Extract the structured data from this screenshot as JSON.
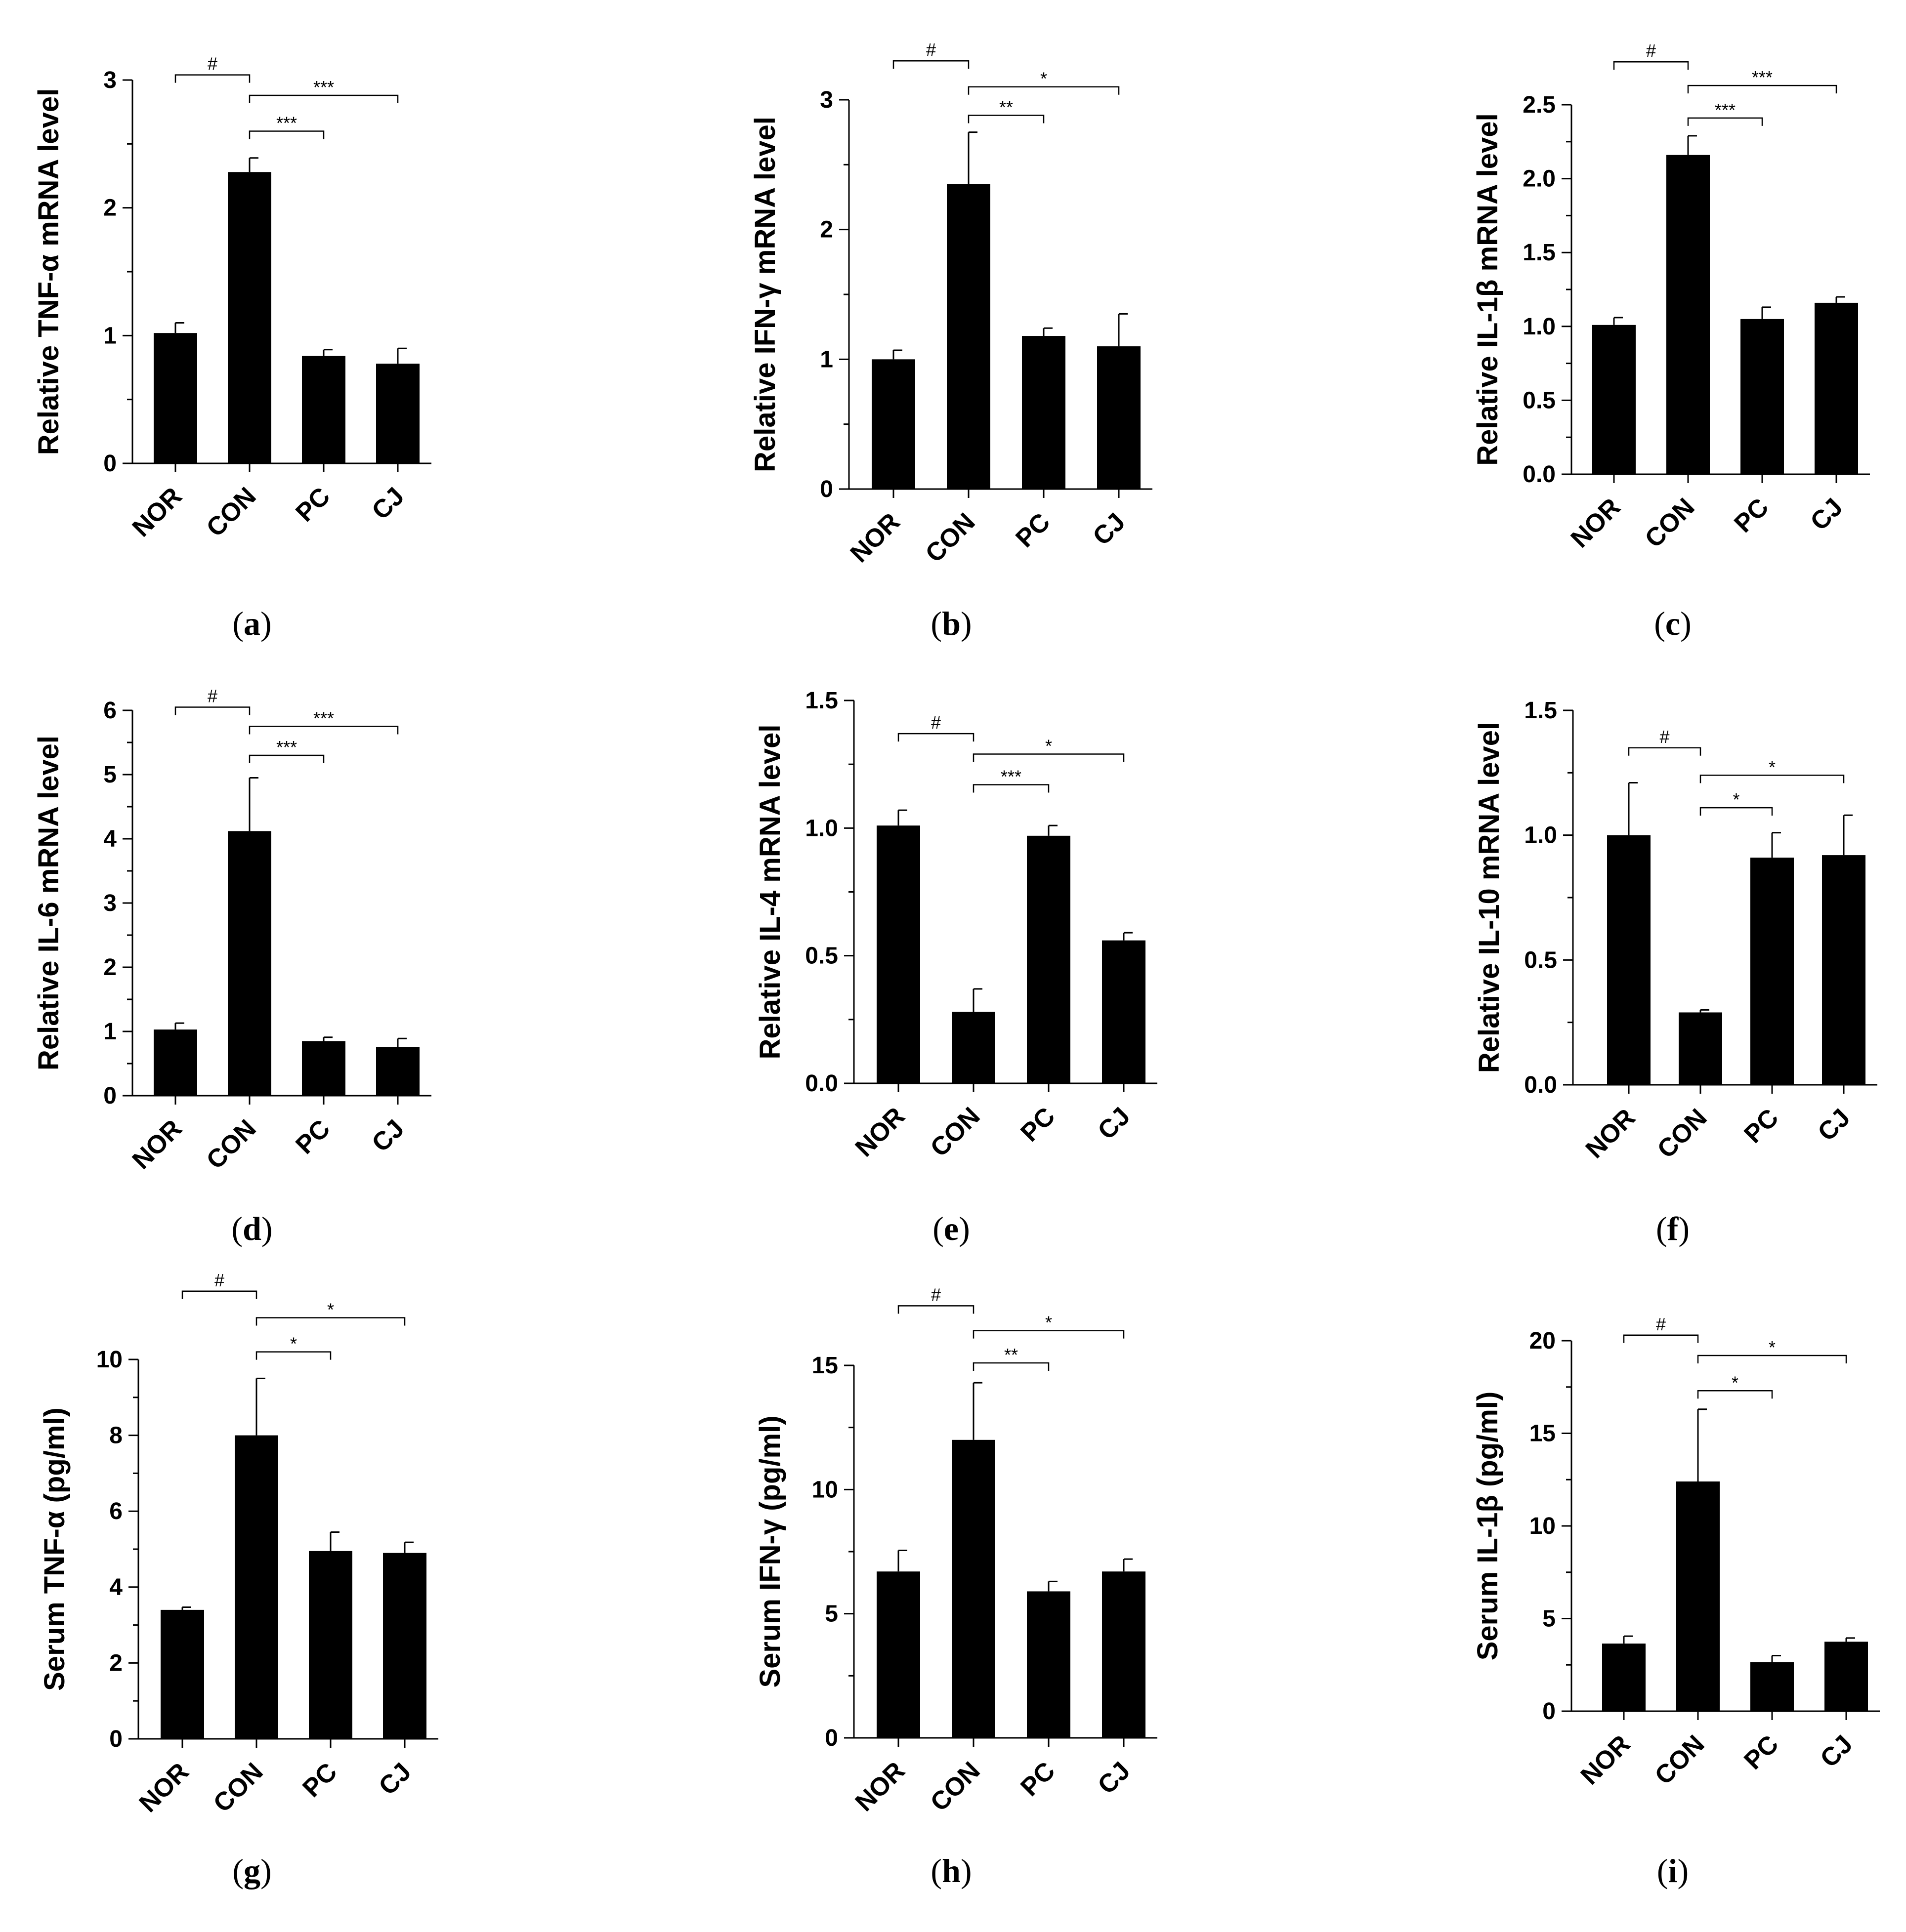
{
  "chart_data": [
    {
      "type": "bar",
      "panel": "a",
      "ylabel": "Relative TNF-α mRNA level",
      "categories": [
        "NOR",
        "CON",
        "PC",
        "CJ"
      ],
      "values": [
        1.02,
        2.28,
        0.84,
        0.78
      ],
      "errors": [
        0.08,
        0.11,
        0.05,
        0.12
      ],
      "ylim": [
        0,
        3
      ],
      "yticks": [
        "0",
        "1",
        "2",
        "3"
      ],
      "significance": [
        {
          "from": 0,
          "to": 1,
          "label": "#",
          "y": 3.04
        },
        {
          "from": 1,
          "to": 2,
          "label": "***",
          "y": 2.6
        },
        {
          "from": 1,
          "to": 3,
          "label": "***",
          "y": 2.88
        }
      ]
    },
    {
      "type": "bar",
      "panel": "b",
      "ylabel": "Relative IFN-γ mRNA level",
      "categories": [
        "NOR",
        "CON",
        "PC",
        "CJ"
      ],
      "values": [
        1.0,
        2.35,
        1.18,
        1.1
      ],
      "errors": [
        0.07,
        0.4,
        0.06,
        0.25
      ],
      "ylim": [
        0,
        3
      ],
      "yticks": [
        "0",
        "1",
        "2",
        "3"
      ],
      "significance": [
        {
          "from": 0,
          "to": 1,
          "label": "#",
          "y": 3.3
        },
        {
          "from": 1,
          "to": 2,
          "label": "**",
          "y": 2.88
        },
        {
          "from": 1,
          "to": 3,
          "label": "*",
          "y": 3.1
        }
      ]
    },
    {
      "type": "bar",
      "panel": "c",
      "ylabel": "Relative IL-1β mRNA level",
      "categories": [
        "NOR",
        "CON",
        "PC",
        "CJ"
      ],
      "values": [
        1.01,
        2.16,
        1.05,
        1.16
      ],
      "errors": [
        0.05,
        0.13,
        0.08,
        0.04
      ],
      "ylim": [
        0,
        2.5
      ],
      "yticks": [
        "0.0",
        "0.5",
        "1.0",
        "1.5",
        "2.0",
        "2.5"
      ],
      "significance": [
        {
          "from": 0,
          "to": 1,
          "label": "#",
          "y": 2.79
        },
        {
          "from": 1,
          "to": 2,
          "label": "***",
          "y": 2.41
        },
        {
          "from": 1,
          "to": 3,
          "label": "***",
          "y": 2.63
        }
      ]
    },
    {
      "type": "bar",
      "panel": "d",
      "ylabel": "Relative IL-6 mRNA level",
      "categories": [
        "NOR",
        "CON",
        "PC",
        "CJ"
      ],
      "values": [
        1.03,
        4.12,
        0.85,
        0.76
      ],
      "errors": [
        0.1,
        0.83,
        0.06,
        0.13
      ],
      "ylim": [
        0,
        6
      ],
      "yticks": [
        "0",
        "1",
        "2",
        "3",
        "4",
        "5",
        "6"
      ],
      "significance": [
        {
          "from": 0,
          "to": 1,
          "label": "#",
          "y": 6.05
        },
        {
          "from": 1,
          "to": 2,
          "label": "***",
          "y": 5.3
        },
        {
          "from": 1,
          "to": 3,
          "label": "***",
          "y": 5.75
        }
      ]
    },
    {
      "type": "bar",
      "panel": "e",
      "ylabel": "Relative IL-4 mRNA level",
      "categories": [
        "NOR",
        "CON",
        "PC",
        "CJ"
      ],
      "values": [
        1.01,
        0.28,
        0.97,
        0.56
      ],
      "errors": [
        0.06,
        0.09,
        0.04,
        0.03
      ],
      "ylim": [
        0,
        1.5
      ],
      "yticks": [
        "0.0",
        "0.5",
        "1.0",
        "1.5"
      ],
      "significance": [
        {
          "from": 0,
          "to": 1,
          "label": "#",
          "y": 1.37
        },
        {
          "from": 1,
          "to": 2,
          "label": "***",
          "y": 1.17
        },
        {
          "from": 1,
          "to": 3,
          "label": "*",
          "y": 1.29
        }
      ]
    },
    {
      "type": "bar",
      "panel": "f",
      "ylabel": "Relative IL-10 mRNA level",
      "categories": [
        "NOR",
        "CON",
        "PC",
        "CJ"
      ],
      "values": [
        1.0,
        0.29,
        0.91,
        0.92
      ],
      "errors": [
        0.21,
        0.01,
        0.1,
        0.16
      ],
      "ylim": [
        0,
        1.5
      ],
      "yticks": [
        "0.0",
        "0.5",
        "1.0",
        "1.5"
      ],
      "significance": [
        {
          "from": 0,
          "to": 1,
          "label": "#",
          "y": 1.35
        },
        {
          "from": 1,
          "to": 2,
          "label": "*",
          "y": 1.11
        },
        {
          "from": 1,
          "to": 3,
          "label": "*",
          "y": 1.24
        }
      ]
    },
    {
      "type": "bar",
      "panel": "g",
      "ylabel": "Serum TNF-α (pg/ml)",
      "categories": [
        "NOR",
        "CON",
        "PC",
        "CJ"
      ],
      "values": [
        3.4,
        8.0,
        4.95,
        4.9
      ],
      "errors": [
        0.07,
        1.5,
        0.5,
        0.28
      ],
      "ylim": [
        0,
        10
      ],
      "yticks": [
        "0",
        "2",
        "4",
        "6",
        "8",
        "10"
      ],
      "significance": [
        {
          "from": 0,
          "to": 1,
          "label": "#",
          "y": 11.8
        },
        {
          "from": 1,
          "to": 2,
          "label": "*",
          "y": 10.2
        },
        {
          "from": 1,
          "to": 3,
          "label": "*",
          "y": 11.1
        }
      ]
    },
    {
      "type": "bar",
      "panel": "h",
      "ylabel": "Serum IFN-γ (pg/ml)",
      "categories": [
        "NOR",
        "CON",
        "PC",
        "CJ"
      ],
      "values": [
        6.7,
        12.0,
        5.9,
        6.7
      ],
      "errors": [
        0.85,
        2.3,
        0.4,
        0.5
      ],
      "ylim": [
        0,
        15
      ],
      "yticks": [
        "0",
        "5",
        "10",
        "15"
      ],
      "significance": [
        {
          "from": 0,
          "to": 1,
          "label": "#",
          "y": 17.4
        },
        {
          "from": 1,
          "to": 2,
          "label": "**",
          "y": 15.1
        },
        {
          "from": 1,
          "to": 3,
          "label": "*",
          "y": 16.4
        }
      ]
    },
    {
      "type": "bar",
      "panel": "i",
      "ylabel": "Serum IL-1β (pg/ml)",
      "categories": [
        "NOR",
        "CON",
        "PC",
        "CJ"
      ],
      "values": [
        3.65,
        12.4,
        2.65,
        3.75
      ],
      "errors": [
        0.4,
        3.9,
        0.35,
        0.2
      ],
      "ylim": [
        0,
        20
      ],
      "yticks": [
        "0",
        "5",
        "10",
        "15",
        "20"
      ],
      "significance": [
        {
          "from": 0,
          "to": 1,
          "label": "#",
          "y": 20.3
        },
        {
          "from": 1,
          "to": 2,
          "label": "*",
          "y": 17.3
        },
        {
          "from": 1,
          "to": 3,
          "label": "*",
          "y": 19.2
        }
      ]
    }
  ]
}
